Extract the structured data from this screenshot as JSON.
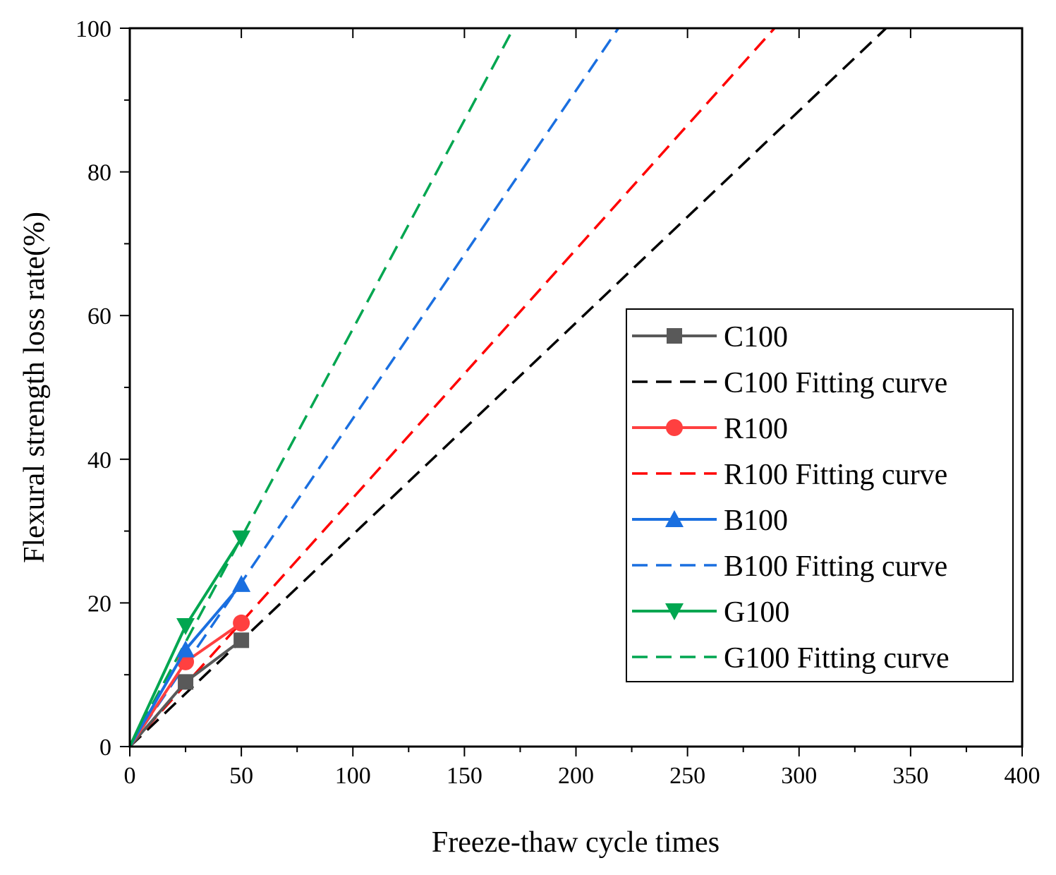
{
  "chart_data": {
    "type": "line",
    "title": "",
    "xlabel": "Freeze-thaw cycle times",
    "ylabel": "Flexural strength loss rate(%)",
    "xlim": [
      0,
      400
    ],
    "ylim": [
      0,
      100
    ],
    "xticks": [
      0,
      50,
      100,
      150,
      200,
      250,
      300,
      350,
      400
    ],
    "yticks": [
      0,
      20,
      40,
      60,
      80,
      100
    ],
    "xtick_labels": [
      "0",
      "50",
      "100",
      "150",
      "200",
      "250",
      "300",
      "350",
      "400"
    ],
    "ytick_labels": [
      "0",
      "20",
      "40",
      "60",
      "80",
      "100"
    ],
    "grid": false,
    "legend_position": "right",
    "series": [
      {
        "name": "C100",
        "kind": "measured",
        "color": "#595959",
        "marker": "square",
        "x": [
          0,
          25,
          50
        ],
        "y": [
          0,
          9.0,
          14.8
        ]
      },
      {
        "name": "C100 Fitting curve",
        "kind": "fit",
        "color": "#000000",
        "x": [
          0,
          339
        ],
        "y": [
          0,
          100
        ]
      },
      {
        "name": "R100",
        "kind": "measured",
        "color": "#ff4040",
        "marker": "circle",
        "x": [
          0,
          25,
          50
        ],
        "y": [
          0,
          11.8,
          17.2
        ]
      },
      {
        "name": "R100 Fitting curve",
        "kind": "fit",
        "color": "#ff0000",
        "x": [
          0,
          289
        ],
        "y": [
          0,
          100
        ]
      },
      {
        "name": "B100",
        "kind": "measured",
        "color": "#1a6fe0",
        "marker": "triangle-up",
        "x": [
          0,
          25,
          50
        ],
        "y": [
          0,
          13.5,
          22.6
        ]
      },
      {
        "name": "B100 Fitting curve",
        "kind": "fit",
        "color": "#1a6fe0",
        "x": [
          0,
          219
        ],
        "y": [
          0,
          100
        ]
      },
      {
        "name": "G100",
        "kind": "measured",
        "color": "#00a650",
        "marker": "triangle-down",
        "x": [
          0,
          25,
          50
        ],
        "y": [
          0,
          16.8,
          29.0
        ]
      },
      {
        "name": "G100 Fitting curve",
        "kind": "fit",
        "color": "#00a650",
        "x": [
          0,
          172
        ],
        "y": [
          0,
          100
        ]
      }
    ]
  }
}
